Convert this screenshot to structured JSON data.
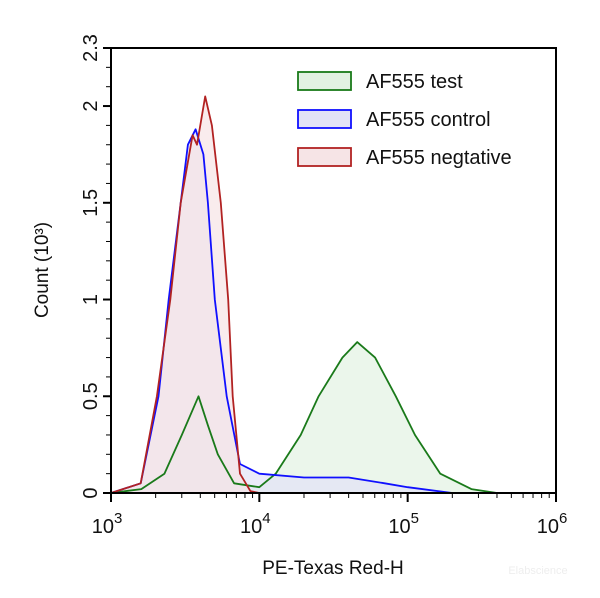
{
  "chart_data": {
    "type": "area",
    "title": "",
    "xlabel": "PE-Texas Red-H",
    "ylabel": "Count (10³)",
    "ylabel_text": "Count",
    "ylabel_unit_base": "10",
    "ylabel_unit_exp": "3",
    "x_scale": "log",
    "xlim": [
      1000,
      1000000
    ],
    "ylim": [
      0,
      2.3
    ],
    "x_ticks": [
      {
        "base": "10",
        "exp": "3",
        "value": 1000
      },
      {
        "base": "10",
        "exp": "4",
        "value": 10000
      },
      {
        "base": "10",
        "exp": "5",
        "value": 100000
      },
      {
        "base": "10",
        "exp": "6",
        "value": 1000000
      }
    ],
    "y_ticks": [
      {
        "label": "0",
        "value": 0
      },
      {
        "label": "0.5",
        "value": 0.5
      },
      {
        "label": "1",
        "value": 1
      },
      {
        "label": "1.5",
        "value": 1.5
      },
      {
        "label": "2",
        "value": 2
      },
      {
        "label": "2.3",
        "value": 2.3
      }
    ],
    "grid": false,
    "legend_position": "top-right",
    "series": [
      {
        "name": "AF555 test",
        "stroke": "#1a7a1a",
        "fill": "#e3f2e3",
        "points": [
          [
            1000,
            0
          ],
          [
            1600,
            0.02
          ],
          [
            2290,
            0.1
          ],
          [
            3000,
            0.3
          ],
          [
            3890,
            0.5
          ],
          [
            4500,
            0.35
          ],
          [
            5250,
            0.2
          ],
          [
            6760,
            0.05
          ],
          [
            10000,
            0.03
          ],
          [
            12900,
            0.1
          ],
          [
            19000,
            0.3
          ],
          [
            25100,
            0.5
          ],
          [
            36300,
            0.7
          ],
          [
            45700,
            0.78
          ],
          [
            60300,
            0.7
          ],
          [
            83200,
            0.5
          ],
          [
            112000,
            0.3
          ],
          [
            166000,
            0.1
          ],
          [
            269000,
            0.02
          ],
          [
            400000,
            0
          ]
        ]
      },
      {
        "name": "AF555 control",
        "stroke": "#1010ff",
        "fill": "#e2e2f6",
        "points": [
          [
            1000,
            0
          ],
          [
            1585,
            0.05
          ],
          [
            2090,
            0.5
          ],
          [
            2450,
            1.0
          ],
          [
            2950,
            1.5
          ],
          [
            3300,
            1.8
          ],
          [
            3720,
            1.88
          ],
          [
            4200,
            1.75
          ],
          [
            4500,
            1.5
          ],
          [
            5010,
            1.0
          ],
          [
            6030,
            0.5
          ],
          [
            7410,
            0.15
          ],
          [
            10000,
            0.1
          ],
          [
            20000,
            0.08
          ],
          [
            40000,
            0.08
          ],
          [
            70000,
            0.05
          ],
          [
            100000,
            0.03
          ],
          [
            200000,
            0
          ]
        ]
      },
      {
        "name": "AF555 negtative",
        "stroke": "#b22222",
        "fill": "#f6e4e6",
        "points": [
          [
            1000,
            0
          ],
          [
            1585,
            0.05
          ],
          [
            2040,
            0.5
          ],
          [
            2510,
            1.0
          ],
          [
            2950,
            1.5
          ],
          [
            3550,
            1.85
          ],
          [
            3800,
            1.8
          ],
          [
            4315,
            2.05
          ],
          [
            4790,
            1.9
          ],
          [
            5500,
            1.5
          ],
          [
            6170,
            1.0
          ],
          [
            6610,
            0.5
          ],
          [
            7410,
            0.1
          ],
          [
            8710,
            0.01
          ],
          [
            10000,
            0
          ]
        ]
      }
    ]
  },
  "watermark": "Elabscience"
}
